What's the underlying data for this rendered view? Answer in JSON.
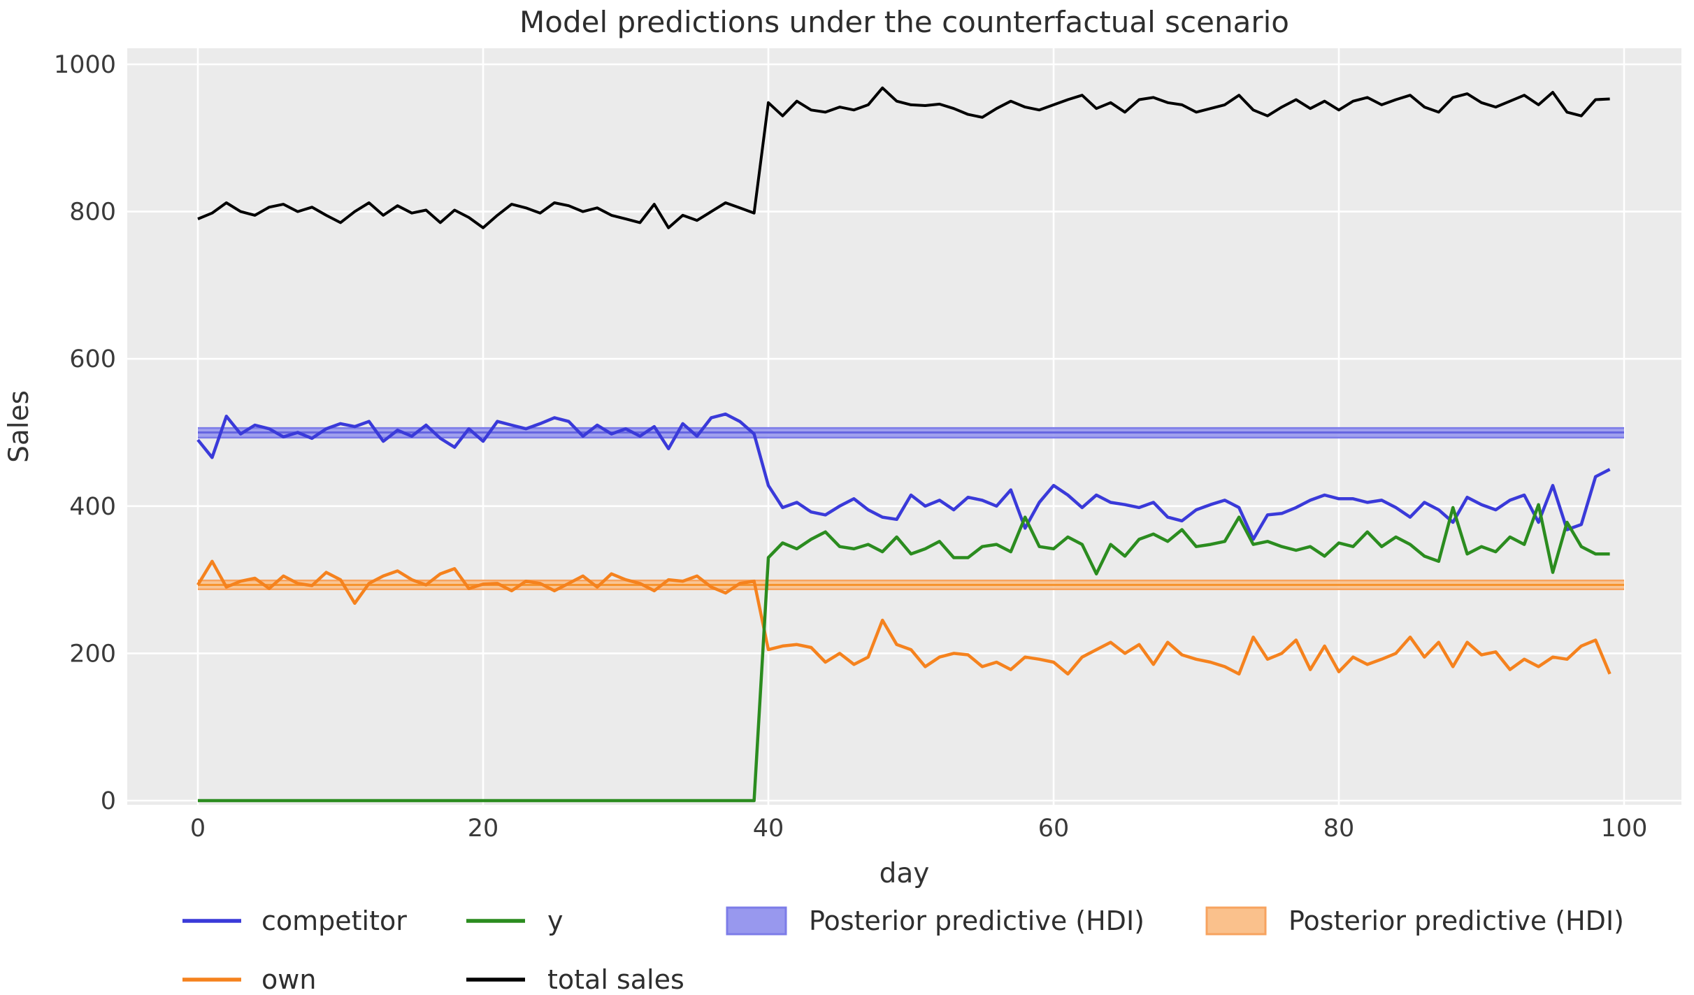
{
  "colors": {
    "figure_background": "#ffffff",
    "plot_background": "#ebebeb",
    "gridline": "#ffffff",
    "competitor_line": "#3a3ad9",
    "own_line": "#f5821e",
    "y_line": "#2b8c1f",
    "total_sales_line": "#000000",
    "hdi_blue_fill": "#9898ee",
    "hdi_blue_edge": "#7c7ce8",
    "hdi_blue_center": "#6666e0",
    "hdi_orange_fill": "#fac18c",
    "hdi_orange_edge": "#f7a35f",
    "hdi_orange_center": "#f6942f",
    "text": "#333333"
  },
  "chart_data": {
    "type": "line",
    "title": "Model predictions under the counterfactual scenario",
    "xlabel": "day",
    "ylabel": "Sales",
    "x_ticks": [
      0,
      20,
      40,
      60,
      80,
      100
    ],
    "y_ticks": [
      0,
      200,
      400,
      600,
      800,
      1000
    ],
    "xlim": [
      -5,
      105
    ],
    "ylim": [
      0,
      1000
    ],
    "grid": true,
    "legend_position": "below",
    "x_start_day": 0,
    "x_step": 1,
    "series": [
      {
        "name": "competitor",
        "color_key": "competitor_line",
        "values": [
          490,
          466,
          522,
          498,
          510,
          505,
          494,
          500,
          492,
          505,
          512,
          508,
          515,
          488,
          503,
          495,
          510,
          492,
          480,
          505,
          488,
          515,
          510,
          505,
          512,
          520,
          515,
          495,
          510,
          498,
          505,
          495,
          508,
          478,
          512,
          495,
          520,
          525,
          515,
          498,
          428,
          398,
          405,
          392,
          388,
          400,
          410,
          395,
          385,
          382,
          415,
          400,
          408,
          395,
          412,
          408,
          400,
          422,
          370,
          405,
          428,
          415,
          398,
          415,
          405,
          402,
          398,
          405,
          385,
          380,
          395,
          402,
          408,
          398,
          355,
          388,
          390,
          398,
          408,
          415,
          410,
          410,
          405,
          408,
          398,
          385,
          405,
          395,
          378,
          412,
          402,
          395,
          408,
          415,
          378,
          428,
          368,
          375,
          440,
          450
        ]
      },
      {
        "name": "own",
        "color_key": "own_line",
        "values": [
          293,
          325,
          290,
          298,
          302,
          288,
          305,
          295,
          292,
          310,
          300,
          268,
          295,
          305,
          312,
          300,
          293,
          308,
          315,
          288,
          294,
          295,
          285,
          298,
          295,
          285,
          295,
          305,
          290,
          308,
          300,
          295,
          285,
          300,
          298,
          305,
          290,
          282,
          295,
          298,
          205,
          210,
          212,
          208,
          188,
          200,
          185,
          195,
          245,
          212,
          205,
          182,
          195,
          200,
          198,
          182,
          188,
          178,
          195,
          192,
          188,
          172,
          195,
          205,
          215,
          200,
          212,
          185,
          215,
          198,
          192,
          188,
          182,
          172,
          222,
          192,
          200,
          218,
          178,
          210,
          175,
          195,
          185,
          192,
          200,
          222,
          195,
          215,
          182,
          215,
          198,
          202,
          178,
          192,
          182,
          195,
          192,
          210,
          218,
          172
        ]
      },
      {
        "name": "y",
        "color_key": "y_line",
        "values": [
          0,
          0,
          0,
          0,
          0,
          0,
          0,
          0,
          0,
          0,
          0,
          0,
          0,
          0,
          0,
          0,
          0,
          0,
          0,
          0,
          0,
          0,
          0,
          0,
          0,
          0,
          0,
          0,
          0,
          0,
          0,
          0,
          0,
          0,
          0,
          0,
          0,
          0,
          0,
          0,
          330,
          350,
          342,
          355,
          365,
          345,
          342,
          348,
          338,
          358,
          335,
          342,
          352,
          330,
          330,
          345,
          348,
          338,
          385,
          345,
          342,
          358,
          348,
          308,
          348,
          332,
          355,
          362,
          352,
          368,
          345,
          348,
          352,
          385,
          348,
          352,
          345,
          340,
          345,
          332,
          350,
          345,
          365,
          345,
          358,
          348,
          332,
          325,
          398,
          335,
          345,
          338,
          358,
          348,
          402,
          310,
          378,
          345,
          335,
          335
        ]
      },
      {
        "name": "total sales",
        "color_key": "total_sales_line",
        "values": [
          790,
          798,
          812,
          800,
          795,
          806,
          810,
          800,
          806,
          795,
          785,
          800,
          812,
          795,
          808,
          798,
          802,
          785,
          802,
          792,
          778,
          795,
          810,
          805,
          798,
          812,
          808,
          800,
          805,
          795,
          790,
          785,
          810,
          778,
          795,
          788,
          800,
          812,
          805,
          798,
          948,
          930,
          950,
          938,
          935,
          942,
          938,
          945,
          968,
          950,
          945,
          944,
          946,
          940,
          932,
          928,
          940,
          950,
          942,
          938,
          945,
          952,
          958,
          940,
          948,
          935,
          952,
          955,
          948,
          945,
          935,
          940,
          945,
          958,
          938,
          930,
          942,
          952,
          940,
          950,
          938,
          950,
          955,
          945,
          952,
          958,
          942,
          935,
          955,
          960,
          948,
          942,
          950,
          958,
          945,
          962,
          935,
          930,
          952,
          953
        ]
      }
    ],
    "bands": [
      {
        "name": "Posterior predictive (HDI)",
        "series": "competitor",
        "lo": 493,
        "hi": 506,
        "center": 500,
        "day_start": 0,
        "day_end": 100,
        "fill_key": "hdi_blue_fill",
        "edge_key": "hdi_blue_edge",
        "center_key": "hdi_blue_center"
      },
      {
        "name": "Posterior predictive (HDI)",
        "series": "own",
        "lo": 287,
        "hi": 299,
        "center": 293,
        "day_start": 0,
        "day_end": 100,
        "fill_key": "hdi_orange_fill",
        "edge_key": "hdi_orange_edge",
        "center_key": "hdi_orange_center"
      }
    ],
    "legend": [
      {
        "label": "competitor",
        "swatch": "line",
        "color_key": "competitor_line",
        "col": 0,
        "row": 0
      },
      {
        "label": "own",
        "swatch": "line",
        "color_key": "own_line",
        "col": 0,
        "row": 1
      },
      {
        "label": "y",
        "swatch": "line",
        "color_key": "y_line",
        "col": 1,
        "row": 0
      },
      {
        "label": "total sales",
        "swatch": "line",
        "color_key": "total_sales_line",
        "col": 1,
        "row": 1
      },
      {
        "label": "Posterior predictive (HDI)",
        "swatch": "patch",
        "fill_key": "hdi_blue_fill",
        "edge_key": "hdi_blue_edge",
        "col": 2,
        "row": 0
      },
      {
        "label": "Posterior predictive (HDI)",
        "swatch": "patch",
        "fill_key": "hdi_orange_fill",
        "edge_key": "hdi_orange_edge",
        "col": 3,
        "row": 0
      }
    ]
  }
}
